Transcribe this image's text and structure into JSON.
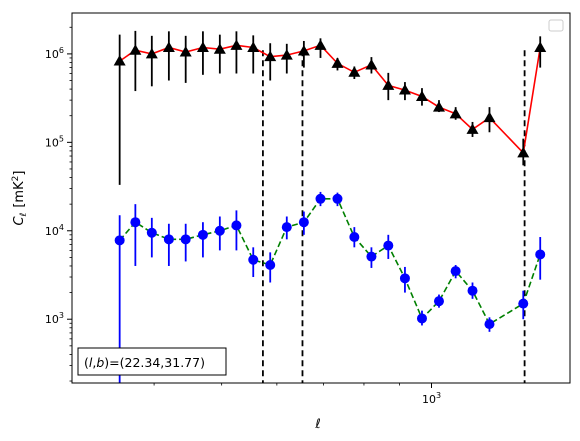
{
  "chart_data": {
    "type": "scatter",
    "xscale": "log",
    "yscale": "log",
    "xlim": [
      305,
      1580
    ],
    "ylim": [
      190,
      2900000
    ],
    "xticks": [
      {
        "value": 1000,
        "label": "10^3"
      }
    ],
    "yticks": [
      {
        "value": 1000,
        "label": "10^3"
      },
      {
        "value": 10000,
        "label": "10^4"
      },
      {
        "value": 100000,
        "label": "10^5"
      },
      {
        "value": 1000000,
        "label": "10^6"
      }
    ],
    "xlabel": "ℓ",
    "ylabel_main": "C",
    "ylabel_sub": "ℓ",
    "ylabel_unit": "[mK",
    "ylabel_unit_sup": "2",
    "ylabel_unit_close": "]",
    "annotation": {
      "prefix": "(",
      "l": "l",
      "comma": ",",
      "b": "b",
      "value": ")=(22.34,31.77)"
    },
    "legend": {
      "placement": "top-right",
      "entries": []
    },
    "vlines": [
      573,
      653,
      1360
    ],
    "x": [
      357,
      376,
      397,
      420,
      444,
      470,
      497,
      525,
      555,
      587,
      620,
      656,
      693,
      733,
      775,
      820,
      867,
      916,
      969,
      1025,
      1083,
      1145,
      1211,
      1281,
      1354,
      1432,
      1514
    ],
    "series": [
      {
        "color": "#ff0000",
        "marker": "triangle",
        "marker_color": "#000000",
        "error_color": "#000000",
        "linestyle": "solid",
        "values": [
          830000,
          1100000,
          1000000,
          1180000,
          1050000,
          1180000,
          1130000,
          1250000,
          1180000,
          930000,
          970000,
          1080000,
          1250000,
          780000,
          620000,
          750000,
          440000,
          390000,
          330000,
          250000,
          210000,
          140000,
          190000,
          76000,
          1180000
        ],
        "err_low": [
          33000,
          380000,
          430000,
          500000,
          470000,
          580000,
          600000,
          600000,
          600000,
          500000,
          600000,
          700000,
          900000,
          650000,
          520000,
          600000,
          300000,
          300000,
          260000,
          220000,
          180000,
          115000,
          130000,
          55000,
          700000
        ],
        "err_high": [
          1650000,
          1820000,
          1600000,
          1800000,
          1600000,
          1800000,
          1650000,
          1800000,
          1620000,
          1320000,
          1300000,
          1400000,
          1500000,
          900000,
          720000,
          920000,
          610000,
          480000,
          410000,
          300000,
          250000,
          170000,
          250000,
          110000,
          1580000
        ],
        "x_index": [
          0,
          1,
          2,
          3,
          4,
          5,
          6,
          7,
          8,
          9,
          10,
          11,
          12,
          13,
          14,
          15,
          16,
          17,
          18,
          19,
          20,
          21,
          22,
          24,
          25
        ]
      },
      {
        "color": "#008000",
        "marker": "circle",
        "marker_color": "#0000ff",
        "error_color": "#0000ff",
        "linestyle": "dashed",
        "values": [
          7800,
          12500,
          9500,
          8000,
          8000,
          9000,
          10000,
          11500,
          4700,
          4100,
          11000,
          12500,
          23000,
          23000,
          8500,
          5100,
          6800,
          2900,
          1020,
          1600,
          3500,
          2100,
          880,
          1500,
          5400
        ],
        "err_low": [
          190,
          4000,
          5000,
          4000,
          4500,
          5000,
          6000,
          6000,
          3000,
          2600,
          8000,
          9000,
          19000,
          19000,
          6500,
          3800,
          4800,
          2000,
          850,
          1350,
          2900,
          1700,
          720,
          1000,
          2800
        ],
        "err_high": [
          15000,
          20000,
          14000,
          12000,
          12000,
          12500,
          14500,
          17000,
          6500,
          5700,
          14500,
          16500,
          27500,
          27000,
          11000,
          6500,
          9000,
          3900,
          1250,
          1900,
          4100,
          2600,
          1050,
          2100,
          8500
        ],
        "x_index": [
          0,
          1,
          2,
          3,
          4,
          5,
          6,
          7,
          8,
          9,
          10,
          11,
          12,
          13,
          14,
          15,
          16,
          17,
          18,
          19,
          20,
          21,
          22,
          24,
          25
        ]
      }
    ]
  }
}
